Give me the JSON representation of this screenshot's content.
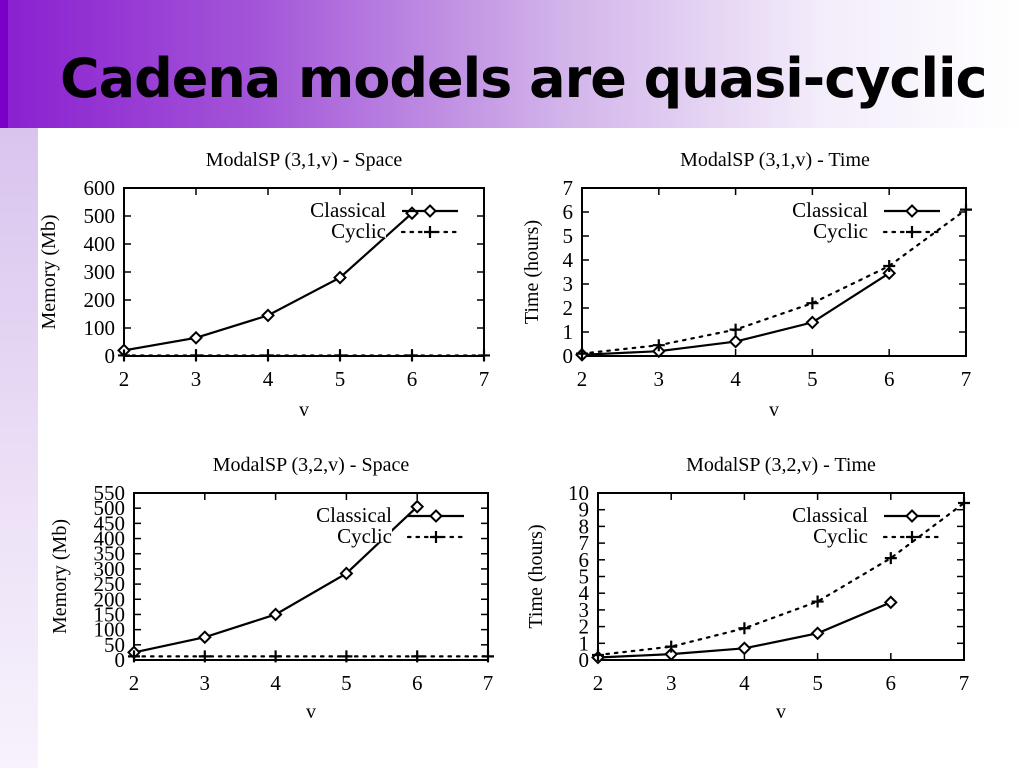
{
  "page": {
    "title": "Cadena models are quasi-cyclic"
  },
  "chart_data": [
    {
      "type": "line",
      "title": "ModalSP (3,1,v) - Space",
      "xlabel": "v",
      "ylabel": "Memory (Mb)",
      "xlim": [
        2,
        7
      ],
      "ylim": [
        0,
        600
      ],
      "xticks": [
        2,
        3,
        4,
        5,
        6,
        7
      ],
      "yticks": [
        0,
        100,
        200,
        300,
        400,
        500,
        600
      ],
      "grid": false,
      "legend": "top-right",
      "series": [
        {
          "name": "Classical",
          "x": [
            2,
            3,
            4,
            5,
            6
          ],
          "values": [
            20,
            65,
            145,
            280,
            510
          ]
        },
        {
          "name": "Cyclic",
          "x": [
            2,
            3,
            4,
            5,
            6,
            7
          ],
          "values": [
            2,
            2,
            2,
            2,
            2,
            2
          ]
        }
      ]
    },
    {
      "type": "line",
      "title": "ModalSP (3,1,v) - Time",
      "xlabel": "v",
      "ylabel": "Time (hours)",
      "xlim": [
        2,
        7
      ],
      "ylim": [
        0,
        7
      ],
      "xticks": [
        2,
        3,
        4,
        5,
        6,
        7
      ],
      "yticks": [
        0,
        1,
        2,
        3,
        4,
        5,
        6,
        7
      ],
      "grid": false,
      "legend": "top-right",
      "series": [
        {
          "name": "Classical",
          "x": [
            2,
            3,
            4,
            5,
            6
          ],
          "values": [
            0.05,
            0.2,
            0.6,
            1.4,
            3.45
          ]
        },
        {
          "name": "Cyclic",
          "x": [
            2,
            3,
            4,
            5,
            6,
            7
          ],
          "values": [
            0.1,
            0.45,
            1.1,
            2.2,
            3.75,
            6.1
          ]
        }
      ]
    },
    {
      "type": "line",
      "title": "ModalSP (3,2,v) - Space",
      "xlabel": "v",
      "ylabel": "Memory (Mb)",
      "xlim": [
        2,
        7
      ],
      "ylim": [
        0,
        550
      ],
      "xticks": [
        2,
        3,
        4,
        5,
        6,
        7
      ],
      "yticks": [
        0,
        50,
        100,
        150,
        200,
        250,
        300,
        350,
        400,
        450,
        500,
        550
      ],
      "grid": false,
      "legend": "top-right",
      "series": [
        {
          "name": "Classical",
          "x": [
            2,
            3,
            4,
            5,
            6
          ],
          "values": [
            25,
            75,
            150,
            285,
            505
          ]
        },
        {
          "name": "Cyclic",
          "x": [
            2,
            3,
            4,
            5,
            6,
            7
          ],
          "values": [
            12,
            12,
            12,
            12,
            12,
            12
          ]
        }
      ]
    },
    {
      "type": "line",
      "title": "ModalSP (3,2,v) - Time",
      "xlabel": "v",
      "ylabel": "Time (hours)",
      "xlim": [
        2,
        7
      ],
      "ylim": [
        0,
        10
      ],
      "xticks": [
        2,
        3,
        4,
        5,
        6,
        7
      ],
      "yticks": [
        0,
        1,
        2,
        3,
        4,
        5,
        6,
        7,
        8,
        9,
        10
      ],
      "grid": false,
      "legend": "top-right",
      "series": [
        {
          "name": "Classical",
          "x": [
            2,
            3,
            4,
            5,
            6
          ],
          "values": [
            0.15,
            0.35,
            0.7,
            1.6,
            3.45
          ]
        },
        {
          "name": "Cyclic",
          "x": [
            2,
            3,
            4,
            5,
            6,
            7
          ],
          "values": [
            0.3,
            0.8,
            1.9,
            3.5,
            6.1,
            9.4
          ]
        }
      ]
    }
  ]
}
